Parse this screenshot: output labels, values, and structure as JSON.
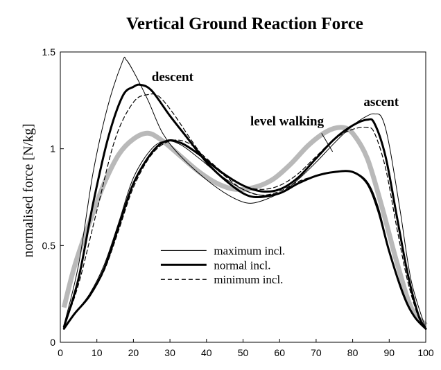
{
  "chart_data": {
    "type": "line",
    "title": "Vertical Ground Reaction Force",
    "xlabel": "",
    "ylabel": "normalised force [N/kg]",
    "xlim": [
      0,
      100
    ],
    "ylim": [
      0,
      1.5
    ],
    "xticks": [
      "0",
      "10",
      "20",
      "30",
      "40",
      "50",
      "60",
      "70",
      "80",
      "90",
      "100"
    ],
    "yticks": [
      "0",
      "0.5",
      "1",
      "1.5"
    ],
    "grid": false,
    "legend_position": "lower-center",
    "legend": [
      {
        "label": "maximum incl.",
        "style": "thin"
      },
      {
        "label": "normal incl.",
        "style": "thick"
      },
      {
        "label": "minimum incl.",
        "style": "dashed"
      }
    ],
    "annotations": [
      {
        "text": "descent"
      },
      {
        "text": "ascent"
      },
      {
        "text": "level walking"
      }
    ],
    "series": [
      {
        "group": "descent",
        "style": "thin",
        "x": [
          1,
          5,
          9,
          13,
          17,
          18,
          20,
          24,
          28,
          33,
          40,
          46,
          51,
          55,
          60,
          65,
          70,
          75,
          80,
          84,
          87,
          90,
          94,
          97,
          100
        ],
        "y": [
          0.09,
          0.4,
          0.88,
          1.22,
          1.45,
          1.46,
          1.4,
          1.25,
          1.08,
          0.96,
          0.84,
          0.76,
          0.72,
          0.73,
          0.77,
          0.82,
          0.86,
          0.88,
          0.88,
          0.83,
          0.7,
          0.48,
          0.25,
          0.13,
          0.07
        ]
      },
      {
        "group": "descent",
        "style": "thick",
        "x": [
          1,
          5,
          9,
          13,
          17,
          20,
          22,
          25,
          30,
          35,
          40,
          45,
          50,
          54,
          60,
          65,
          70,
          75,
          80,
          84,
          87,
          90,
          94,
          97,
          100
        ],
        "y": [
          0.08,
          0.33,
          0.72,
          1.05,
          1.27,
          1.32,
          1.33,
          1.3,
          1.17,
          1.05,
          0.93,
          0.84,
          0.77,
          0.75,
          0.77,
          0.82,
          0.86,
          0.88,
          0.88,
          0.82,
          0.68,
          0.47,
          0.24,
          0.13,
          0.07
        ]
      },
      {
        "group": "descent",
        "style": "dashed",
        "x": [
          1,
          5,
          10,
          15,
          20,
          24,
          27,
          31,
          36,
          40,
          45,
          50,
          55,
          60,
          65,
          70,
          75,
          80,
          84,
          87,
          90,
          94,
          97,
          100
        ],
        "y": [
          0.08,
          0.3,
          0.68,
          1.05,
          1.24,
          1.28,
          1.27,
          1.18,
          1.04,
          0.94,
          0.86,
          0.79,
          0.76,
          0.78,
          0.83,
          0.86,
          0.88,
          0.88,
          0.82,
          0.68,
          0.47,
          0.24,
          0.13,
          0.07
        ]
      },
      {
        "group": "level walking",
        "style": "gray",
        "x": [
          1,
          4,
          8,
          12,
          16,
          20,
          24,
          28,
          33,
          38,
          43,
          48,
          53,
          58,
          63,
          68,
          73,
          77,
          80,
          84,
          88,
          92,
          96,
          100
        ],
        "y": [
          0.18,
          0.4,
          0.62,
          0.82,
          0.97,
          1.05,
          1.08,
          1.04,
          0.96,
          0.88,
          0.82,
          0.79,
          0.8,
          0.84,
          0.92,
          1.02,
          1.09,
          1.11,
          1.08,
          0.95,
          0.7,
          0.42,
          0.18,
          0.09
        ]
      },
      {
        "group": "ascent",
        "style": "thin",
        "x": [
          1,
          4,
          8,
          12,
          16,
          20,
          25,
          29,
          33,
          38,
          44,
          50,
          55,
          60,
          65,
          70,
          75,
          80,
          84,
          86,
          88,
          90,
          93,
          96,
          100
        ],
        "y": [
          0.07,
          0.15,
          0.25,
          0.4,
          0.62,
          0.85,
          1.0,
          1.04,
          1.02,
          0.95,
          0.86,
          0.79,
          0.76,
          0.77,
          0.84,
          0.93,
          1.03,
          1.12,
          1.17,
          1.18,
          1.16,
          1.02,
          0.68,
          0.32,
          0.07
        ]
      },
      {
        "group": "ascent",
        "style": "thick",
        "x": [
          1,
          4,
          8,
          12,
          16,
          20,
          25,
          29,
          33,
          38,
          44,
          50,
          55,
          60,
          65,
          70,
          75,
          80,
          84,
          86,
          89,
          92,
          95,
          98,
          100
        ],
        "y": [
          0.07,
          0.15,
          0.24,
          0.38,
          0.6,
          0.82,
          0.98,
          1.04,
          1.03,
          0.97,
          0.88,
          0.81,
          0.78,
          0.79,
          0.85,
          0.95,
          1.05,
          1.12,
          1.15,
          1.13,
          0.96,
          0.66,
          0.36,
          0.14,
          0.07
        ]
      },
      {
        "group": "ascent",
        "style": "dashed",
        "x": [
          1,
          4,
          8,
          12,
          16,
          20,
          25,
          30,
          35,
          40,
          45,
          50,
          55,
          60,
          65,
          70,
          75,
          80,
          84,
          86,
          89,
          92,
          95,
          98,
          100
        ],
        "y": [
          0.07,
          0.15,
          0.24,
          0.37,
          0.58,
          0.8,
          0.97,
          1.04,
          1.03,
          0.95,
          0.87,
          0.81,
          0.79,
          0.81,
          0.87,
          0.96,
          1.05,
          1.1,
          1.11,
          1.08,
          0.9,
          0.6,
          0.32,
          0.13,
          0.07
        ]
      }
    ]
  }
}
